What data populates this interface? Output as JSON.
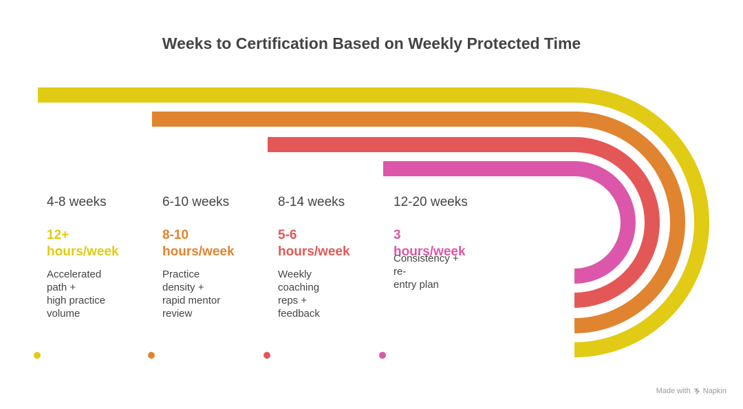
{
  "title": "Weeks to Certification Based on Weekly Protected Time",
  "colors": {
    "tier1": "#E1CB15",
    "tier2": "#E0842F",
    "tier3": "#E45757",
    "tier4": "#DC57AA",
    "text": "#444444"
  },
  "tiers": [
    {
      "duration": "4-8 weeks",
      "hours_line1": "12+",
      "hours_line2": "hours/week",
      "desc_line1": "Accelerated path +",
      "desc_line2": "high practice volume",
      "color": "#E1CB15"
    },
    {
      "duration": "6-10 weeks",
      "hours_line1": "8-10",
      "hours_line2": "hours/week",
      "desc_line1": "Practice density +",
      "desc_line2": "rapid mentor review",
      "color": "#E0842F"
    },
    {
      "duration": "8-14 weeks",
      "hours_line1": "5-6",
      "hours_line2": "hours/week",
      "desc_line1": "Weekly coaching",
      "desc_line2": "reps + feedback",
      "color": "#E45757"
    },
    {
      "duration": "12-20 weeks",
      "hours_line1": "3 hours/week",
      "hours_line2": "",
      "desc_line1": "Consistency + re-",
      "desc_line2": "entry plan",
      "color": "#DC57AA"
    }
  ],
  "watermark": {
    "prefix": "Made with",
    "brand": "Napkin"
  }
}
